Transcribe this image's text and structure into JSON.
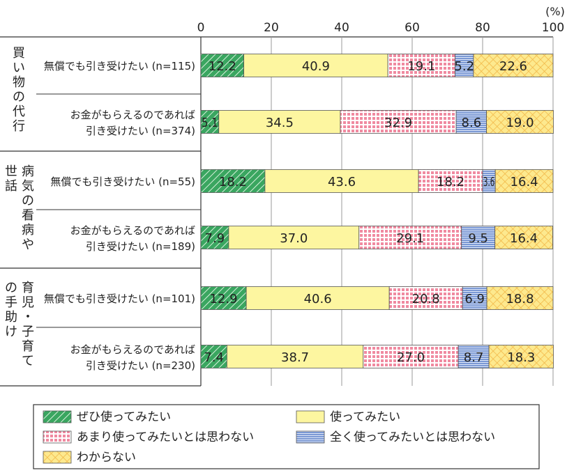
{
  "chart_data": {
    "type": "bar",
    "stacked": true,
    "orientation": "horizontal",
    "unit": "(%)",
    "xlim": [
      0,
      100
    ],
    "x_ticks": [
      "0",
      "20",
      "40",
      "60",
      "80",
      "100"
    ],
    "groups": [
      "買い物の代行",
      "病気の看病や世話",
      "育児・子育ての手助け"
    ],
    "categories": [
      "無償でも引き受けたい (n=115)",
      "お金がもらえるのであれば引き受けたい (n=374)",
      "無償でも引き受けたい (n=55)",
      "お金がもらえるのであれば引き受けたい (n=189)",
      "無償でも引き受けたい (n=101)",
      "お金がもらえるのであれば引き受けたい (n=230)"
    ],
    "series": [
      {
        "name": "ぜひ使ってみたい",
        "values": [
          12.2,
          5.1,
          18.2,
          7.9,
          12.9,
          7.4
        ]
      },
      {
        "name": "使ってみたい",
        "values": [
          40.9,
          34.5,
          43.6,
          37.0,
          40.6,
          38.7
        ]
      },
      {
        "name": "あまり使ってみたいとは思わない",
        "values": [
          19.1,
          32.9,
          18.2,
          29.1,
          20.8,
          27.0
        ]
      },
      {
        "name": "全く使ってみたいとは思わない",
        "values": [
          5.2,
          8.6,
          3.6,
          9.5,
          6.9,
          8.7
        ]
      },
      {
        "name": "わからない",
        "values": [
          22.6,
          19.0,
          16.4,
          16.4,
          18.8,
          18.3
        ]
      }
    ],
    "grid": true,
    "legend_position": "bottom"
  },
  "group_labels": [
    {
      "columns": [
        "買い物の代行"
      ]
    },
    {
      "columns": [
        "世話",
        "病気の看病や"
      ]
    },
    {
      "columns": [
        "の手助け",
        "育児・子育て"
      ]
    }
  ],
  "row_labels": [
    [
      "無償でも引き受けたい (n=115)"
    ],
    [
      "お金がもらえるのであれば",
      "引き受けたい (n=374)"
    ],
    [
      "無償でも引き受けたい (n=55)"
    ],
    [
      "お金がもらえるのであれば",
      "引き受けたい (n=189)"
    ],
    [
      "無償でも引き受けたい (n=101)"
    ],
    [
      "お金がもらえるのであれば",
      "引き受けたい (n=230)"
    ]
  ],
  "value_labels": [
    [
      "12.2",
      "40.9",
      "19.1",
      "5.2",
      "22.6"
    ],
    [
      "5.1",
      "34.5",
      "32.9",
      "8.6",
      "19.0"
    ],
    [
      "18.2",
      "43.6",
      "18.2",
      "3.6",
      "16.4"
    ],
    [
      "7.9",
      "37.0",
      "29.1",
      "9.5",
      "16.4"
    ],
    [
      "12.9",
      "40.6",
      "20.8",
      "6.9",
      "18.8"
    ],
    [
      "7.4",
      "38.7",
      "27.0",
      "8.7",
      "18.3"
    ]
  ],
  "colors": {
    "s0": "#3aa660",
    "s1": "#fdf6a0",
    "s2": "#f08aa0",
    "s3": "#6f8fd0",
    "s4": "#fbe27a",
    "grid": "#9a9a9a",
    "border": "#333333"
  }
}
